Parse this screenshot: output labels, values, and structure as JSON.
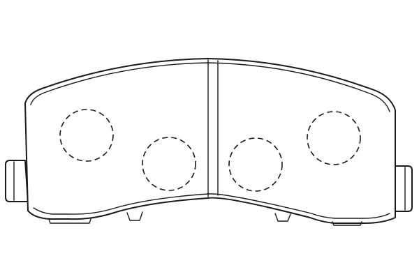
{
  "diagram": {
    "subject": "brake-pad",
    "stroke_color": "#1a1a1a",
    "background_color": "#ffffff",
    "hidden_holes_count": 4,
    "center_slot": true
  }
}
